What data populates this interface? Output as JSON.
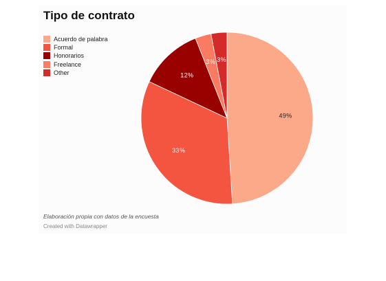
{
  "title": "Tipo de contrato",
  "notes": "Elaboración propia con datos de la encuesta",
  "credit": "Created with Datawrapper",
  "chart_data": {
    "type": "pie",
    "title": "Tipo de contrato",
    "legend_position": "top-left",
    "slices": [
      {
        "label": "Acuerdo de palabra",
        "value": 49,
        "display": "49%",
        "color": "#fca98a",
        "text_color": "#222222"
      },
      {
        "label": "Formal",
        "value": 33,
        "display": "33%",
        "color": "#f45540",
        "text_color": "#ffffff"
      },
      {
        "label": "Honorarios",
        "value": 12,
        "display": "12%",
        "color": "#990000",
        "text_color": "#ffffff"
      },
      {
        "label": "Freelance",
        "value": 3,
        "display": "3%",
        "color": "#fa7a62",
        "text_color": "#ffffff"
      },
      {
        "label": "Other",
        "value": 3,
        "display": "3%",
        "color": "#d32a2a",
        "text_color": "#ffffff"
      }
    ]
  }
}
